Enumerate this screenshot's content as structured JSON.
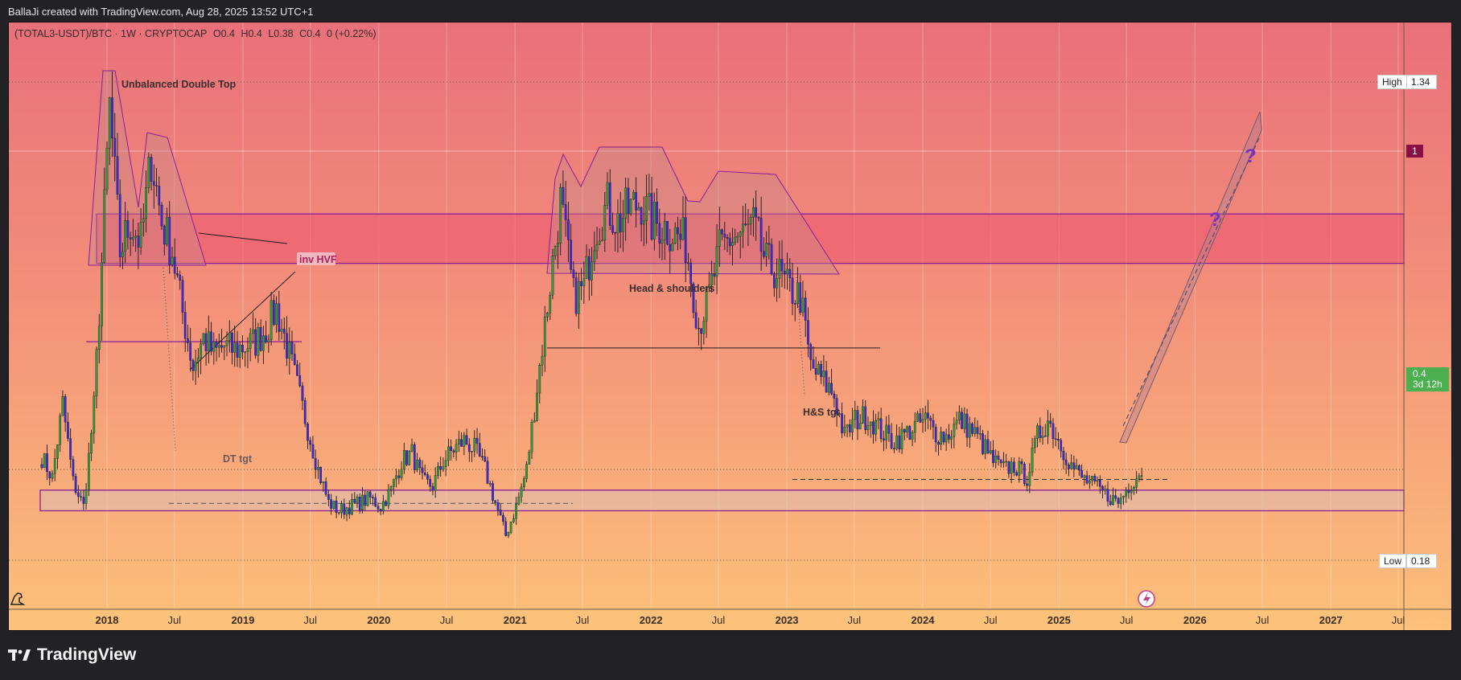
{
  "header": {
    "created_by": "BallaJi created with TradingView.com, Aug 28, 2025 13:52 UTC+1"
  },
  "symbol": {
    "name": "(TOTAL3-USDT)/BTC · 1W · CRYPTOCAP",
    "open": "O0.4",
    "high": "H0.4",
    "low": "L0.38",
    "close": "C0.4",
    "change": "0 (+0.22%)"
  },
  "price_scale": {
    "high_label": "High",
    "high_value": "1.34",
    "level_one": "1",
    "current_value": "0.4",
    "current_countdown": "3d 12h",
    "low_label": "Low",
    "low_value": "0.18"
  },
  "brand": {
    "name": "TradingView"
  },
  "colors": {
    "bg_top": "#e8707a",
    "bg_bottom": "#fcc17a",
    "candle_up": "#2e9a3a",
    "candle_down": "#3a2ad8",
    "zone_purple": "#8a1f9a",
    "accent_green": "#4caf50",
    "marker_maroon": "#8a1048"
  },
  "chart_data": {
    "type": "candlestick",
    "timeframe": "1W",
    "x_ticks": [
      "2018",
      "Jul",
      "2019",
      "Jul",
      "2020",
      "Jul",
      "2021",
      "Jul",
      "2022",
      "Jul",
      "2023",
      "Jul",
      "2024",
      "Jul",
      "2025",
      "Jul",
      "2026",
      "Jul",
      "2027",
      "Jul"
    ],
    "x_tick_dates": [
      "2018-01-01",
      "2018-07-01",
      "2019-01-01",
      "2019-07-01",
      "2020-01-01",
      "2020-07-01",
      "2021-01-01",
      "2021-07-01",
      "2022-01-01",
      "2022-07-01",
      "2023-01-01",
      "2023-07-01",
      "2024-01-01",
      "2024-07-01",
      "2025-01-01",
      "2025-07-01",
      "2026-01-01",
      "2026-07-01",
      "2027-01-01",
      "2027-07-01"
    ],
    "price_range": [
      0.18,
      1.34
    ],
    "current_price": 0.4,
    "anchors": [
      [
        "2017-07-10",
        0.43
      ],
      [
        "2017-08-07",
        0.38
      ],
      [
        "2017-09-04",
        0.56
      ],
      [
        "2017-10-02",
        0.37
      ],
      [
        "2017-10-30",
        0.31
      ],
      [
        "2017-11-27",
        0.55
      ],
      [
        "2017-12-18",
        0.9
      ],
      [
        "2018-01-08",
        1.28
      ],
      [
        "2018-02-05",
        0.93
      ],
      [
        "2018-03-05",
        1.0
      ],
      [
        "2018-04-02",
        0.95
      ],
      [
        "2018-04-30",
        1.16
      ],
      [
        "2018-05-28",
        1.0
      ],
      [
        "2018-06-25",
        0.93
      ],
      [
        "2018-07-23",
        0.78
      ],
      [
        "2018-08-20",
        0.65
      ],
      [
        "2018-09-17",
        0.72
      ],
      [
        "2018-10-15",
        0.68
      ],
      [
        "2018-11-12",
        0.7
      ],
      [
        "2018-12-10",
        0.69
      ],
      [
        "2019-01-07",
        0.7
      ],
      [
        "2019-02-04",
        0.71
      ],
      [
        "2019-03-04",
        0.74
      ],
      [
        "2019-04-01",
        0.79
      ],
      [
        "2019-04-29",
        0.7
      ],
      [
        "2019-05-27",
        0.6
      ],
      [
        "2019-06-24",
        0.5
      ],
      [
        "2019-07-22",
        0.4
      ],
      [
        "2019-08-19",
        0.32
      ],
      [
        "2019-09-16",
        0.3
      ],
      [
        "2019-10-14",
        0.31
      ],
      [
        "2019-11-11",
        0.32
      ],
      [
        "2019-12-09",
        0.33
      ],
      [
        "2020-01-06",
        0.31
      ],
      [
        "2020-02-03",
        0.35
      ],
      [
        "2020-03-02",
        0.42
      ],
      [
        "2020-03-30",
        0.44
      ],
      [
        "2020-04-27",
        0.37
      ],
      [
        "2020-05-25",
        0.36
      ],
      [
        "2020-06-22",
        0.42
      ],
      [
        "2020-07-20",
        0.45
      ],
      [
        "2020-08-17",
        0.47
      ],
      [
        "2020-09-14",
        0.45
      ],
      [
        "2020-10-12",
        0.4
      ],
      [
        "2020-11-09",
        0.32
      ],
      [
        "2020-12-07",
        0.24
      ],
      [
        "2021-01-04",
        0.31
      ],
      [
        "2021-02-01",
        0.4
      ],
      [
        "2021-03-01",
        0.6
      ],
      [
        "2021-04-05",
        0.85
      ],
      [
        "2021-05-03",
        1.05
      ],
      [
        "2021-06-07",
        0.82
      ],
      [
        "2021-07-05",
        0.84
      ],
      [
        "2021-08-02",
        0.98
      ],
      [
        "2021-09-06",
        1.04
      ],
      [
        "2021-10-04",
        1.0
      ],
      [
        "2021-11-01",
        1.03
      ],
      [
        "2021-12-06",
        1.05
      ],
      [
        "2022-01-03",
        1.0
      ],
      [
        "2022-02-07",
        0.99
      ],
      [
        "2022-03-07",
        0.97
      ],
      [
        "2022-04-04",
        0.95
      ],
      [
        "2022-05-09",
        0.75
      ],
      [
        "2022-06-06",
        0.82
      ],
      [
        "2022-07-04",
        0.93
      ],
      [
        "2022-08-01",
        0.96
      ],
      [
        "2022-09-05",
        0.97
      ],
      [
        "2022-10-03",
        0.99
      ],
      [
        "2022-11-07",
        0.9
      ],
      [
        "2022-12-05",
        0.88
      ],
      [
        "2023-01-02",
        0.84
      ],
      [
        "2023-02-06",
        0.82
      ],
      [
        "2023-03-06",
        0.65
      ],
      [
        "2023-04-03",
        0.62
      ],
      [
        "2023-05-08",
        0.58
      ],
      [
        "2023-06-05",
        0.48
      ],
      [
        "2023-07-03",
        0.52
      ],
      [
        "2023-08-07",
        0.53
      ],
      [
        "2023-09-04",
        0.5
      ],
      [
        "2023-10-09",
        0.47
      ],
      [
        "2023-11-06",
        0.48
      ],
      [
        "2023-12-04",
        0.5
      ],
      [
        "2024-01-08",
        0.52
      ],
      [
        "2024-02-05",
        0.49
      ],
      [
        "2024-03-04",
        0.48
      ],
      [
        "2024-04-08",
        0.52
      ],
      [
        "2024-05-06",
        0.5
      ],
      [
        "2024-06-03",
        0.47
      ],
      [
        "2024-07-08",
        0.42
      ],
      [
        "2024-08-05",
        0.4
      ],
      [
        "2024-09-02",
        0.41
      ],
      [
        "2024-10-07",
        0.38
      ],
      [
        "2024-11-04",
        0.48
      ],
      [
        "2024-12-02",
        0.52
      ],
      [
        "2025-01-06",
        0.46
      ],
      [
        "2025-02-03",
        0.41
      ],
      [
        "2025-03-03",
        0.38
      ],
      [
        "2025-04-07",
        0.36
      ],
      [
        "2025-05-05",
        0.34
      ],
      [
        "2025-06-09",
        0.32
      ],
      [
        "2025-07-07",
        0.36
      ],
      [
        "2025-08-11",
        0.4
      ]
    ],
    "zones": [
      {
        "name": "resistance-zone",
        "top": 1.02,
        "bottom": 0.9,
        "from": "2017-12-04",
        "to": "2027-07-31"
      },
      {
        "name": "support-zone",
        "top": 0.35,
        "bottom": 0.3,
        "from": "2017-07-01",
        "to": "2027-07-31"
      }
    ],
    "annotations": {
      "double_top": "Unbalanced Double Top",
      "inv_hvf": "inv HVF",
      "head_shoulders": "Head & shoulders",
      "dt_target": "DT tgt",
      "hs_target": "H&S tgt",
      "question_mark": "?"
    },
    "levels": {
      "neckline_double_top": 0.71,
      "neckline_head_shoulders": 0.695,
      "dt_target": 0.318,
      "hs_target": 0.376
    }
  }
}
